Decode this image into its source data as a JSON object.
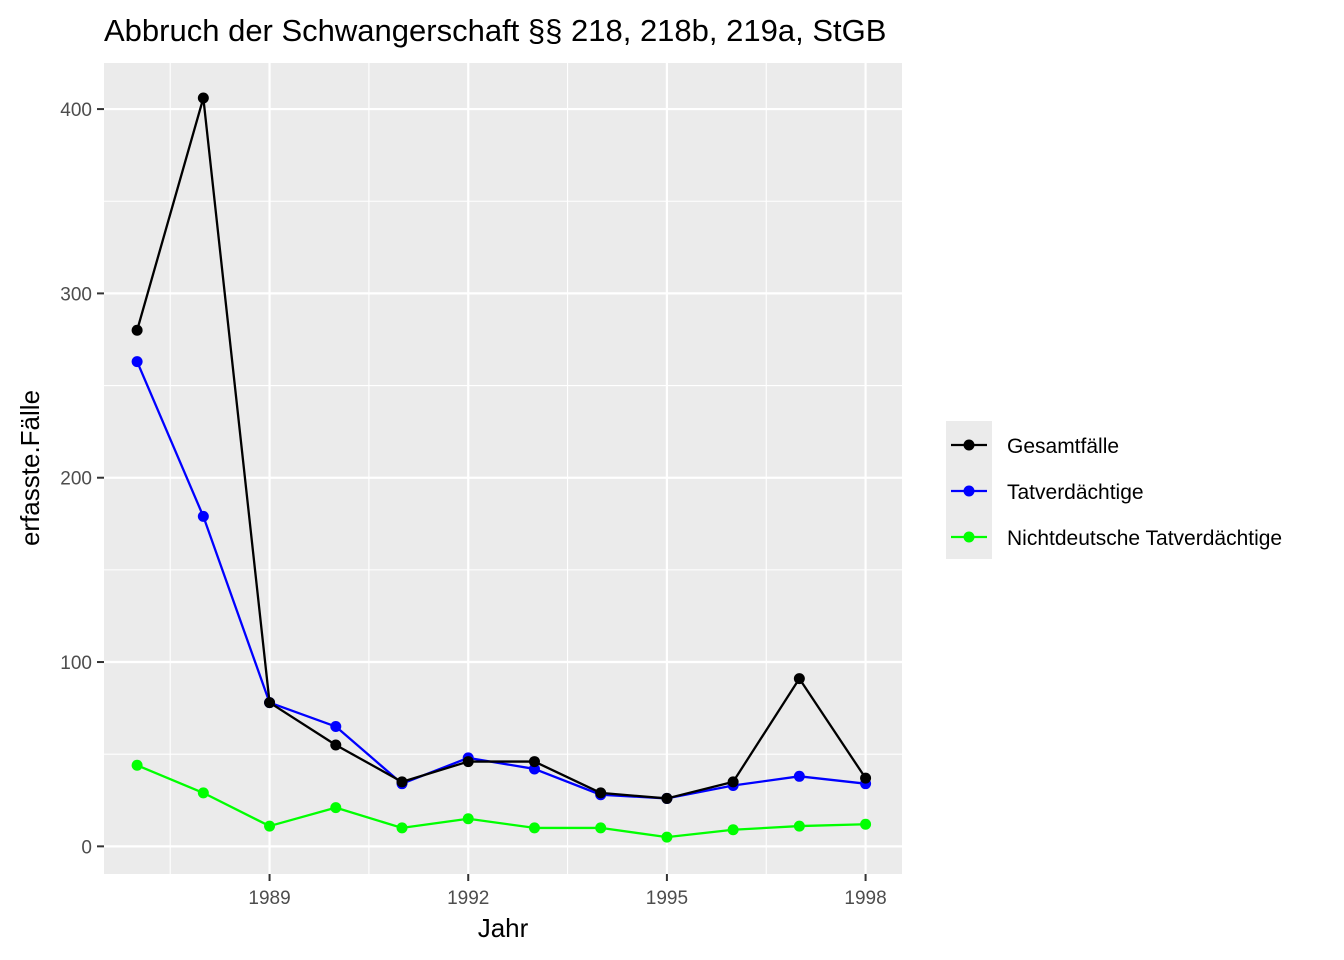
{
  "chart_data": {
    "type": "line",
    "title": "Abbruch der Schwangerschaft §§ 218, 218b, 219a, StGB",
    "xlabel": "Jahr",
    "ylabel": "erfasste.Fälle",
    "x": [
      1987,
      1988,
      1989,
      1990,
      1991,
      1992,
      1993,
      1994,
      1995,
      1996,
      1997,
      1998
    ],
    "xlim": [
      1986.5,
      1998.55
    ],
    "ylim": [
      -15,
      425
    ],
    "x_ticks": [
      1989,
      1992,
      1995,
      1998
    ],
    "y_ticks": [
      0,
      100,
      200,
      300,
      400
    ],
    "grid": true,
    "legend_position": "right",
    "series": [
      {
        "name": "Gesamtfälle",
        "color": "#000000",
        "values": [
          280,
          406,
          78,
          55,
          35,
          46,
          46,
          29,
          26,
          35,
          91,
          37
        ]
      },
      {
        "name": "Tatverdächtige",
        "color": "#0000ff",
        "values": [
          263,
          179,
          78,
          65,
          34,
          48,
          42,
          28,
          26,
          33,
          38,
          34
        ]
      },
      {
        "name": "Nichtdeutsche Tatverdächtige",
        "color": "#00ff00",
        "values": [
          44,
          29,
          11,
          21,
          10,
          15,
          10,
          10,
          5,
          9,
          11,
          12
        ]
      }
    ]
  }
}
